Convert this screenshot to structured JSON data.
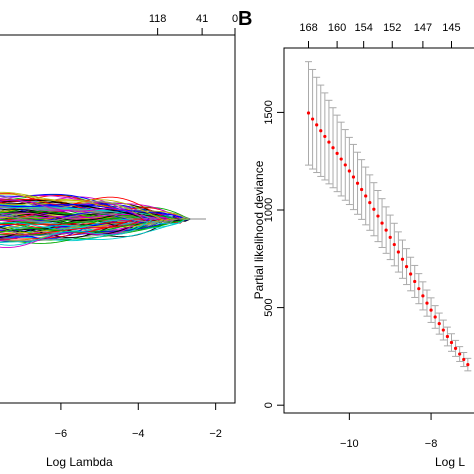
{
  "chart_data": [
    {
      "type": "line",
      "panel_label": "",
      "xlabel": "Log Lambda",
      "xlim": [
        -7.6,
        -1.5
      ],
      "ylim": [
        -1.0,
        1.0
      ],
      "x_ticks": [
        -6,
        -4,
        -2
      ],
      "top_axis_labels": [
        {
          "x": -3.5,
          "label": "118"
        },
        {
          "x": -2.35,
          "label": "41"
        },
        {
          "x": -1.5,
          "label": "0"
        }
      ],
      "colors": [
        "#000000",
        "#ff0000",
        "#00aa00",
        "#0000ff",
        "#00cccc",
        "#cc00cc",
        "#bbbb00",
        "#888888"
      ],
      "series_count": 120,
      "series_end_x": -2.25
    },
    {
      "type": "scatter",
      "panel_label": "B",
      "xlabel": "Log L",
      "ylabel": "Partial likelihood deviance",
      "xlim": [
        -11.6,
        -6.9
      ],
      "ylim": [
        -40,
        1830
      ],
      "x_ticks": [
        -10,
        -8
      ],
      "y_ticks": [
        0,
        500,
        1000,
        1500
      ],
      "top_axis_labels": [
        {
          "x": -11,
          "label": "168"
        },
        {
          "x": -10.3,
          "label": "160"
        },
        {
          "x": -9.65,
          "label": "154"
        },
        {
          "x": -8.95,
          "label": "152"
        },
        {
          "x": -8.2,
          "label": "147"
        },
        {
          "x": -7.5,
          "label": "145"
        }
      ],
      "points_color": "#ff0000",
      "error_bar_color": "#aaaaaa",
      "series": [
        {
          "name": "",
          "x": [
            -11.0,
            -10.9,
            -10.8,
            -10.7,
            -10.6,
            -10.5,
            -10.4,
            -10.3,
            -10.2,
            -10.1,
            -10.0,
            -9.9,
            -9.8,
            -9.7,
            -9.6,
            -9.5,
            -9.4,
            -9.3,
            -9.2,
            -9.1,
            -9.0,
            -8.9,
            -8.8,
            -8.7,
            -8.6,
            -8.5,
            -8.4,
            -8.3,
            -8.2,
            -8.1,
            -8.0,
            -7.9,
            -7.8,
            -7.7,
            -7.6,
            -7.5,
            -7.4,
            -7.3,
            -7.2,
            -7.1
          ],
          "y": [
            1497,
            1466,
            1436,
            1406,
            1377,
            1348,
            1319,
            1290,
            1261,
            1231,
            1200,
            1169,
            1137,
            1105,
            1072,
            1038,
            1004,
            969,
            933,
            897,
            860,
            823,
            785,
            748,
            710,
            672,
            634,
            597,
            560,
            523,
            487,
            452,
            418,
            385,
            352,
            321,
            291,
            262,
            234,
            208
          ],
          "lower": [
            1230,
            1210,
            1192,
            1172,
            1154,
            1134,
            1114,
            1094,
            1072,
            1050,
            1028,
            1002,
            978,
            952,
            924,
            896,
            868,
            838,
            808,
            778,
            746,
            714,
            682,
            650,
            618,
            586,
            552,
            520,
            488,
            456,
            424,
            394,
            364,
            334,
            304,
            276,
            250,
            224,
            198,
            176
          ],
          "upper": [
            1760,
            1720,
            1680,
            1640,
            1600,
            1562,
            1524,
            1486,
            1450,
            1412,
            1372,
            1336,
            1296,
            1258,
            1220,
            1180,
            1140,
            1100,
            1058,
            1016,
            974,
            932,
            888,
            846,
            802,
            758,
            716,
            674,
            632,
            590,
            550,
            510,
            472,
            436,
            400,
            366,
            332,
            300,
            270,
            240
          ]
        }
      ]
    }
  ]
}
